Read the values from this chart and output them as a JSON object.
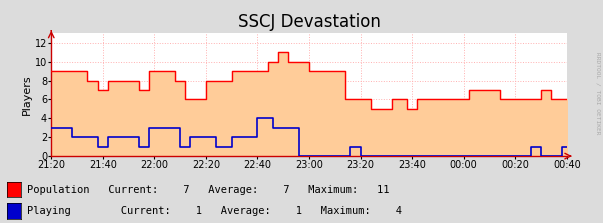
{
  "title": "SSCJ Devastation",
  "ylabel": "Players",
  "background_color": "#dcdcdc",
  "plot_bg_color": "#ffffff",
  "grid_color": "#ffb0b0",
  "ylim": [
    0,
    13
  ],
  "yticks": [
    0,
    2,
    4,
    6,
    8,
    10,
    12
  ],
  "xtick_labels": [
    "21:20",
    "21:40",
    "22:00",
    "22:20",
    "22:40",
    "23:00",
    "23:20",
    "23:40",
    "00:00",
    "00:20",
    "00:40"
  ],
  "pop_color": "#ff0000",
  "pop_fill": "#ffcc99",
  "play_color": "#0000cc",
  "watermark": "RRDTOOL / TOBI OETIKER",
  "pop_x": [
    0,
    1,
    2,
    3,
    4,
    5,
    6,
    7,
    8,
    9,
    10,
    11,
    12,
    13,
    14,
    15,
    16,
    17,
    18,
    19,
    20,
    21,
    22,
    23,
    24,
    25,
    26,
    27,
    28,
    29,
    30,
    31,
    32,
    33,
    34,
    35,
    36,
    37,
    38,
    39,
    40,
    41,
    42,
    43,
    44,
    45,
    46,
    47,
    48,
    49,
    50,
    51,
    52,
    53,
    54,
    55,
    56,
    57,
    58,
    59,
    60,
    61,
    62,
    63,
    64,
    65,
    66,
    67,
    68,
    69,
    70,
    71,
    72,
    73,
    74,
    75,
    76,
    77,
    78,
    79,
    80,
    81,
    82,
    83,
    84,
    85,
    86,
    87,
    88,
    89,
    90,
    91,
    92,
    93,
    94,
    95,
    96,
    97,
    98,
    99,
    100
  ],
  "pop_y": [
    9,
    9,
    9,
    9,
    9,
    9,
    9,
    8,
    8,
    7,
    7,
    8,
    8,
    8,
    8,
    8,
    8,
    7,
    7,
    9,
    9,
    9,
    9,
    9,
    8,
    8,
    6,
    6,
    6,
    6,
    8,
    8,
    8,
    8,
    8,
    9,
    9,
    9,
    9,
    9,
    9,
    9,
    10,
    10,
    11,
    11,
    10,
    10,
    10,
    10,
    9,
    9,
    9,
    9,
    9,
    9,
    9,
    6,
    6,
    6,
    6,
    6,
    5,
    5,
    5,
    5,
    6,
    6,
    6,
    5,
    5,
    6,
    6,
    6,
    6,
    6,
    6,
    6,
    6,
    6,
    6,
    7,
    7,
    7,
    7,
    7,
    7,
    6,
    6,
    6,
    6,
    6,
    6,
    6,
    6,
    7,
    7,
    6,
    6,
    6,
    6
  ],
  "play_x": [
    0,
    1,
    2,
    3,
    4,
    5,
    6,
    7,
    8,
    9,
    10,
    11,
    12,
    13,
    14,
    15,
    16,
    17,
    18,
    19,
    20,
    21,
    22,
    23,
    24,
    25,
    26,
    27,
    28,
    29,
    30,
    31,
    32,
    33,
    34,
    35,
    36,
    37,
    38,
    39,
    40,
    41,
    42,
    43,
    44,
    45,
    46,
    47,
    48,
    49,
    50,
    51,
    52,
    53,
    54,
    55,
    56,
    57,
    58,
    59,
    60,
    61,
    62,
    63,
    64,
    65,
    66,
    67,
    68,
    69,
    70,
    71,
    72,
    73,
    74,
    75,
    76,
    77,
    78,
    79,
    80,
    81,
    82,
    83,
    84,
    85,
    86,
    87,
    88,
    89,
    90,
    91,
    92,
    93,
    94,
    95,
    96,
    97,
    98,
    99,
    100
  ],
  "play_y": [
    3,
    3,
    3,
    3,
    2,
    2,
    2,
    2,
    2,
    1,
    1,
    2,
    2,
    2,
    2,
    2,
    2,
    1,
    1,
    3,
    3,
    3,
    3,
    3,
    3,
    1,
    1,
    2,
    2,
    2,
    2,
    2,
    1,
    1,
    1,
    2,
    2,
    2,
    2,
    2,
    4,
    4,
    4,
    3,
    3,
    3,
    3,
    3,
    0,
    0,
    0,
    0,
    0,
    0,
    0,
    0,
    0,
    0,
    1,
    1,
    0,
    0,
    0,
    0,
    0,
    0,
    0,
    0,
    0,
    0,
    0,
    0,
    0,
    0,
    0,
    0,
    0,
    0,
    0,
    0,
    0,
    0,
    0,
    0,
    0,
    0,
    0,
    0,
    0,
    0,
    0,
    0,
    0,
    1,
    1,
    0,
    0,
    0,
    0,
    1,
    1
  ]
}
